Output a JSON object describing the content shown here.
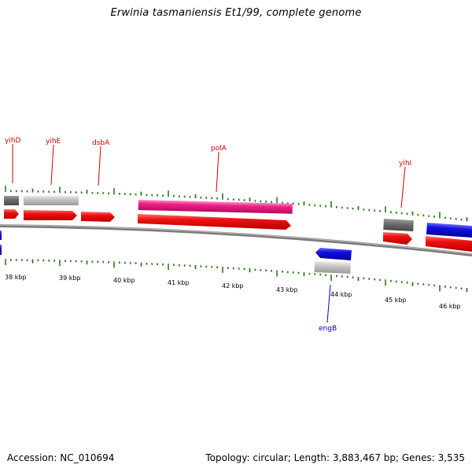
{
  "title": "Erwinia tasmaniensis Et1/99, complete genome",
  "footer": {
    "accession": "Accession: NC_010694",
    "stats": "Topology: circular; Length: 3,883,467 bp; Genes: 3,535"
  },
  "colors": {
    "background": "#ffffff",
    "backbone": "#888888",
    "tick": "#2a7a1e",
    "gene_red": "#ee1111",
    "gene_blue": "#1111dd",
    "gene_pink": "#ee2288",
    "gene_gray_dark": "#6e6e6e",
    "gene_gray_light": "#c4c4c4",
    "label_red": "#cc0000",
    "label_blue": "#0000cc"
  },
  "axis": {
    "unit": "kbp",
    "labels": [
      "38 kbp",
      "39 kbp",
      "40 kbp",
      "41 kbp",
      "42 kbp",
      "43 kbp",
      "44 kbp",
      "45 kbp",
      "46 kbp"
    ]
  },
  "gene_labels": [
    {
      "name": "yihD",
      "strand": "forward"
    },
    {
      "name": "yihE",
      "strand": "forward"
    },
    {
      "name": "dsbA",
      "strand": "forward"
    },
    {
      "name": "polA",
      "strand": "forward"
    },
    {
      "name": "yihI",
      "strand": "forward"
    },
    {
      "name": "engB",
      "strand": "reverse"
    }
  ]
}
